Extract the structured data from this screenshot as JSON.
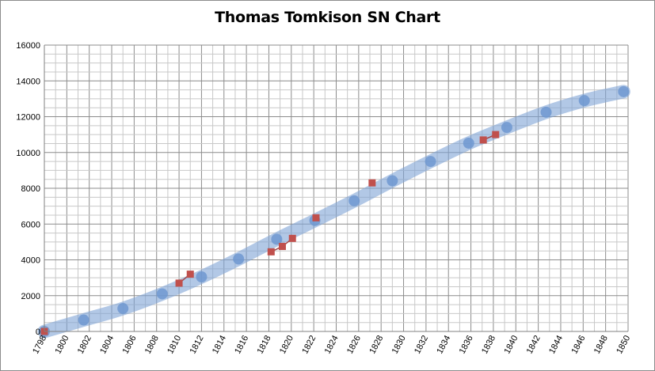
{
  "chart_data": {
    "type": "scatter",
    "title": "Thomas Tomkison SN Chart",
    "xlabel": "",
    "ylabel": "",
    "xlim": [
      1798,
      1850
    ],
    "ylim": [
      0,
      16000
    ],
    "x_ticks": [
      "1798",
      "1800",
      "1802",
      "1804",
      "1806",
      "1808",
      "1810",
      "1812",
      "1814",
      "1816",
      "1818",
      "1820",
      "1822",
      "1824",
      "1826",
      "1828",
      "1830",
      "1832",
      "1834",
      "1836",
      "1838",
      "1840",
      "1842",
      "1844",
      "1846",
      "1848",
      "1850"
    ],
    "y_ticks": [
      "0",
      "2000",
      "4000",
      "6000",
      "8000",
      "10000",
      "12000",
      "14000",
      "16000"
    ],
    "grid": true,
    "legend": "none",
    "series": [
      {
        "kind": "trend-band",
        "color": "#7ea4d6",
        "x": [
          1798,
          1801.5,
          1805,
          1808.5,
          1812,
          1815.3,
          1818.7,
          1822.1,
          1825.6,
          1829,
          1832.4,
          1835.8,
          1839.2,
          1842.7,
          1846.1,
          1849.6
        ],
        "y": [
          0,
          640,
          1280,
          2100,
          3050,
          4050,
          5150,
          6200,
          7300,
          8420,
          9500,
          10520,
          11400,
          12250,
          12900,
          13400
        ]
      },
      {
        "kind": "points",
        "color": "#6f98d0",
        "x": [
          1798,
          1801.5,
          1805,
          1808.5,
          1812,
          1815.3,
          1818.7,
          1822.1,
          1825.6,
          1829,
          1832.4,
          1835.8,
          1839.2,
          1842.7,
          1846.1,
          1849.6
        ],
        "y": [
          0,
          640,
          1280,
          2100,
          3050,
          4050,
          5150,
          6200,
          7300,
          8420,
          9500,
          10520,
          11400,
          12250,
          12900,
          13400
        ]
      },
      {
        "kind": "markers",
        "color": "#c0504d",
        "x": [
          1798,
          1810,
          1811,
          1818.2,
          1819.2,
          1820.1,
          1822.2,
          1827.2,
          1837.1,
          1838.2
        ],
        "y": [
          0,
          2700,
          3200,
          4450,
          4750,
          5200,
          6350,
          8300,
          10700,
          11000
        ]
      }
    ]
  }
}
